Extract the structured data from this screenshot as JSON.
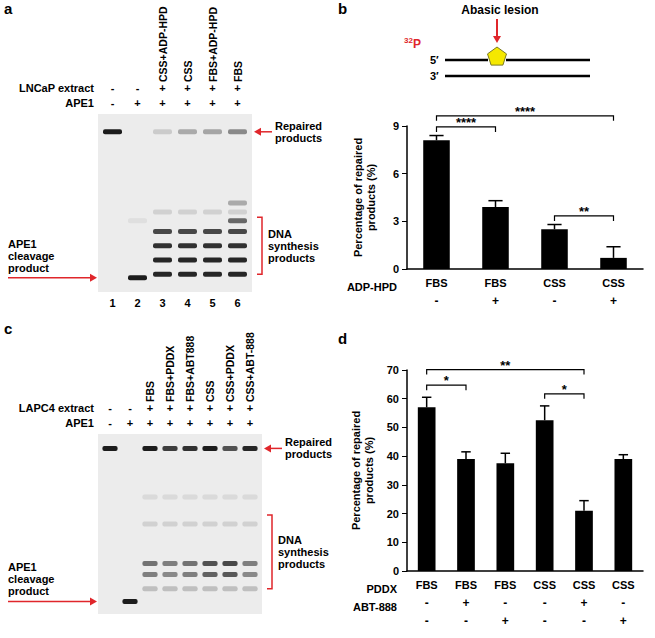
{
  "gels": [
    {
      "panel": "a",
      "rows": [
        {
          "name": "LNCaP extract",
          "values": [
            "-",
            "-",
            "+",
            "+",
            "+",
            "+"
          ]
        },
        {
          "name": "APE1",
          "values": [
            "-",
            "+",
            "+",
            "+",
            "+",
            "+"
          ]
        }
      ],
      "lane_labels": [
        null,
        null,
        "CSS+ADP-HPD",
        "CSS",
        "FBS+ADP-HPD",
        "FBS"
      ],
      "lane_numbers": [
        1,
        2,
        3,
        4,
        5,
        6
      ],
      "annotations": {
        "repaired": "Repaired products",
        "synthesis": "DNA synthesis products",
        "cleavage": "APE1 cleavage product"
      }
    },
    {
      "panel": "c",
      "rows": [
        {
          "name": "LAPC4 extract",
          "values": [
            "-",
            "-",
            "+",
            "+",
            "+",
            "+",
            "+",
            "+"
          ]
        },
        {
          "name": "APE1",
          "values": [
            "-",
            "+",
            "+",
            "+",
            "+",
            "+",
            "+",
            "+"
          ]
        }
      ],
      "lane_labels": [
        null,
        null,
        "FBS",
        "FBS+PDDX",
        "FBS+ABT888",
        "CSS",
        "CSS+PDDX",
        "CSS+ABT-888"
      ],
      "annotations": {
        "repaired": "Repaired products",
        "synthesis": "DNA synthesis products",
        "cleavage": "APE1 cleavage product"
      }
    }
  ],
  "schematic": {
    "label": "Abasic lesion",
    "isotope_mass": "32",
    "isotope": "P",
    "strand_top": "5′",
    "strand_bottom": "3′"
  },
  "chart_data": [
    {
      "panel": "b",
      "type": "bar",
      "categories": [
        "FBS",
        "FBS",
        "CSS",
        "CSS"
      ],
      "values": [
        8.1,
        3.9,
        2.5,
        0.7
      ],
      "errors": [
        0.3,
        0.4,
        0.3,
        0.7
      ],
      "color": "#000000",
      "ylabel": "Percentage of repaired products (%)",
      "ylim": [
        0,
        9
      ],
      "yticks": [
        0,
        3,
        6,
        9
      ],
      "grid": false,
      "factor_rows": [
        {
          "name": "ADP-HPD",
          "values": [
            "-",
            "+",
            "-",
            "+"
          ]
        }
      ],
      "comparisons": [
        {
          "from": 0,
          "to": 1,
          "label": "****"
        },
        {
          "from": 0,
          "to": 3,
          "label": "****"
        },
        {
          "from": 2,
          "to": 3,
          "label": "**"
        }
      ]
    },
    {
      "panel": "d",
      "type": "bar",
      "categories": [
        "FBS",
        "FBS",
        "FBS",
        "CSS",
        "CSS",
        "CSS"
      ],
      "values": [
        57,
        39,
        37.5,
        52.5,
        21,
        39
      ],
      "errors": [
        3.5,
        2.5,
        3.5,
        5,
        3.5,
        1.5
      ],
      "color": "#000000",
      "ylabel": "Percentage of repaired products (%)",
      "ylim": [
        0,
        70
      ],
      "yticks": [
        0,
        10,
        20,
        30,
        40,
        50,
        60,
        70
      ],
      "grid": false,
      "factor_rows": [
        {
          "name": "PDDX",
          "values": [
            "-",
            "+",
            "-",
            "-",
            "+",
            "-"
          ]
        },
        {
          "name": "ABT-888",
          "values": [
            "-",
            "-",
            "+",
            "-",
            "-",
            "+"
          ]
        }
      ],
      "comparisons": [
        {
          "from": 0,
          "to": 1,
          "label": "*"
        },
        {
          "from": 0,
          "to": 4,
          "label": "**"
        },
        {
          "from": 3,
          "to": 4,
          "label": "*"
        }
      ]
    }
  ]
}
